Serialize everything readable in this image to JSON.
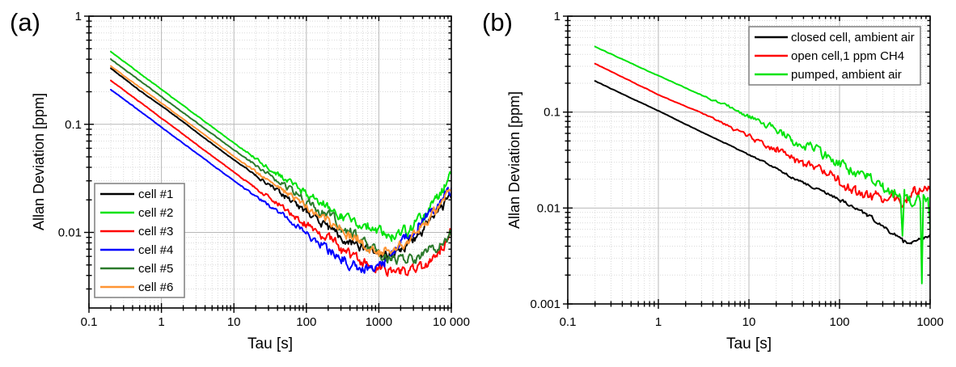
{
  "figure": {
    "background": "#ffffff",
    "description": "Two-panel log-log Allan deviation figure"
  },
  "chart_data": [
    {
      "type": "line",
      "panel_label": "(a)",
      "xlabel": "Tau [s]",
      "ylabel": "Allan Deviation [ppm]",
      "xscale": "log",
      "yscale": "log",
      "xlim": [
        0.1,
        10000
      ],
      "ylim": [
        0.002,
        1
      ],
      "grid": "major solid + minor dotted",
      "legend_position": "lower-left",
      "x_tick_labels": [
        [
          "0.1",
          0.1
        ],
        [
          "1",
          1
        ],
        [
          "10",
          10
        ],
        [
          "100",
          100
        ],
        [
          "1000",
          1000
        ],
        [
          "10 000",
          10000
        ]
      ],
      "y_tick_labels": [
        [
          "1",
          1
        ],
        [
          "0.1",
          0.1
        ],
        [
          "0.01",
          0.01
        ]
      ],
      "series": [
        {
          "name": "cell #1",
          "color": "#000000",
          "noise": {
            "max": 0.036,
            "r0": 1.0,
            "r1": 2.4
          },
          "anchors": [
            [
              0.2,
              0.33
            ],
            [
              0.5,
              0.205
            ],
            [
              1,
              0.148
            ],
            [
              2,
              0.105
            ],
            [
              5,
              0.066
            ],
            [
              10,
              0.047
            ],
            [
              20,
              0.034
            ],
            [
              50,
              0.0215
            ],
            [
              100,
              0.0155
            ],
            [
              200,
              0.0112
            ],
            [
              400,
              0.0082
            ],
            [
              700,
              0.0068
            ],
            [
              1200,
              0.0061
            ],
            [
              2000,
              0.0068
            ],
            [
              3000,
              0.0085
            ],
            [
              5000,
              0.0125
            ],
            [
              7000,
              0.016
            ],
            [
              10000,
              0.022
            ]
          ]
        },
        {
          "name": "cell #2",
          "color": "#00e30b",
          "noise": {
            "max": 0.042,
            "r0": 1.0,
            "r1": 2.4
          },
          "anchors": [
            [
              0.2,
              0.47
            ],
            [
              1,
              0.21
            ],
            [
              10,
              0.067
            ],
            [
              100,
              0.0225
            ],
            [
              300,
              0.0145
            ],
            [
              700,
              0.011
            ],
            [
              1500,
              0.0096
            ],
            [
              2500,
              0.0105
            ],
            [
              4000,
              0.0135
            ],
            [
              6000,
              0.019
            ],
            [
              8000,
              0.026
            ],
            [
              10000,
              0.034
            ]
          ]
        },
        {
          "name": "cell #3",
          "color": "#ff0000",
          "noise": {
            "max": 0.042,
            "r0": 1.0,
            "r1": 2.4
          },
          "anchors": [
            [
              0.2,
              0.255
            ],
            [
              1,
              0.114
            ],
            [
              10,
              0.036
            ],
            [
              100,
              0.012
            ],
            [
              300,
              0.007
            ],
            [
              600,
              0.0052
            ],
            [
              1000,
              0.0046
            ],
            [
              2000,
              0.0043
            ],
            [
              3000,
              0.0044
            ],
            [
              5000,
              0.0052
            ],
            [
              7000,
              0.0068
            ],
            [
              10000,
              0.0105
            ]
          ]
        },
        {
          "name": "cell #4",
          "color": "#0000ff",
          "noise": {
            "max": 0.04,
            "r0": 1.0,
            "r1": 2.4
          },
          "anchors": [
            [
              0.2,
              0.21
            ],
            [
              1,
              0.094
            ],
            [
              10,
              0.03
            ],
            [
              100,
              0.01
            ],
            [
              250,
              0.0062
            ],
            [
              500,
              0.0047
            ],
            [
              800,
              0.0045
            ],
            [
              1200,
              0.0055
            ],
            [
              2000,
              0.0078
            ],
            [
              3500,
              0.0115
            ],
            [
              6000,
              0.017
            ],
            [
              8000,
              0.021
            ],
            [
              10000,
              0.0255
            ]
          ]
        },
        {
          "name": "cell #5",
          "color": "#2b7a2b",
          "noise": {
            "max": 0.04,
            "r0": 1.0,
            "r1": 2.4
          },
          "anchors": [
            [
              0.2,
              0.4
            ],
            [
              1,
              0.18
            ],
            [
              10,
              0.058
            ],
            [
              100,
              0.0195
            ],
            [
              300,
              0.0115
            ],
            [
              700,
              0.0073
            ],
            [
              1500,
              0.0057
            ],
            [
              2500,
              0.0056
            ],
            [
              4000,
              0.0061
            ],
            [
              6000,
              0.0072
            ],
            [
              8000,
              0.0085
            ],
            [
              10000,
              0.0102
            ]
          ]
        },
        {
          "name": "cell #6",
          "color": "#ff9433",
          "noise": {
            "max": 0.04,
            "r0": 1.0,
            "r1": 2.4
          },
          "anchors": [
            [
              0.2,
              0.345
            ],
            [
              1,
              0.157
            ],
            [
              10,
              0.0505
            ],
            [
              100,
              0.0172
            ],
            [
              250,
              0.0115
            ],
            [
              500,
              0.0085
            ],
            [
              1000,
              0.0066
            ],
            [
              1600,
              0.007
            ],
            [
              2500,
              0.0085
            ],
            [
              4000,
              0.0115
            ],
            [
              6000,
              0.0155
            ],
            [
              8000,
              0.0195
            ],
            [
              10000,
              0.024
            ]
          ]
        }
      ]
    },
    {
      "type": "line",
      "panel_label": "(b)",
      "xlabel": "Tau [s]",
      "ylabel": "Allan Deviation [ppm]",
      "xscale": "log",
      "yscale": "log",
      "xlim": [
        0.1,
        1000
      ],
      "ylim": [
        0.001,
        1
      ],
      "grid": "major solid + minor dotted",
      "legend_position": "upper-right",
      "x_tick_labels": [
        [
          "0.1",
          0.1
        ],
        [
          "1",
          1
        ],
        [
          "10",
          10
        ],
        [
          "100",
          100
        ],
        [
          "1000",
          1000
        ]
      ],
      "y_tick_labels": [
        [
          "1",
          1
        ],
        [
          "0.1",
          0.1
        ],
        [
          "0.01",
          0.01
        ],
        [
          "0.001",
          0.001
        ]
      ],
      "series": [
        {
          "name": "closed cell, ambient air",
          "color": "#000000",
          "noise": {
            "max": 0.016,
            "r0": 0.6,
            "r1": 2.2
          },
          "anchors": [
            [
              0.2,
              0.21
            ],
            [
              1,
              0.103
            ],
            [
              3,
              0.062
            ],
            [
              10,
              0.036
            ],
            [
              30,
              0.021
            ],
            [
              100,
              0.0122
            ],
            [
              200,
              0.0085
            ],
            [
              350,
              0.006
            ],
            [
              500,
              0.0046
            ],
            [
              620,
              0.0043
            ],
            [
              750,
              0.0049
            ],
            [
              850,
              0.0048
            ],
            [
              1000,
              0.0053
            ]
          ]
        },
        {
          "name": "open cell,1 ppm CH4",
          "color": "#ff0000",
          "noise": {
            "max": 0.05,
            "r0": 0.4,
            "r1": 1.9
          },
          "anchors": [
            [
              0.2,
              0.32
            ],
            [
              1,
              0.152
            ],
            [
              2,
              0.115
            ],
            [
              3,
              0.098
            ],
            [
              5,
              0.076
            ],
            [
              10,
              0.056
            ],
            [
              20,
              0.04
            ],
            [
              40,
              0.029
            ],
            [
              70,
              0.0225
            ],
            [
              100,
              0.019
            ],
            [
              150,
              0.0152
            ],
            [
              250,
              0.0128
            ],
            [
              400,
              0.0125
            ],
            [
              550,
              0.012
            ],
            [
              650,
              0.0148
            ],
            [
              750,
              0.0138
            ],
            [
              850,
              0.0165
            ],
            [
              1000,
              0.0155
            ]
          ]
        },
        {
          "name": "pumped, ambient air",
          "color": "#00e30b",
          "noise": {
            "max": 0.052,
            "r0": 0.4,
            "r1": 1.9
          },
          "anchors": [
            [
              0.2,
              0.48
            ],
            [
              1,
              0.24
            ],
            [
              3,
              0.15
            ],
            [
              10,
              0.091
            ],
            [
              30,
              0.053
            ],
            [
              100,
              0.0295
            ],
            [
              200,
              0.0205
            ],
            [
              300,
              0.016
            ],
            [
              400,
              0.014
            ],
            [
              470,
              0.013
            ],
            [
              495,
              0.0042
            ],
            [
              520,
              0.013
            ],
            [
              600,
              0.012
            ],
            [
              700,
              0.0125
            ],
            [
              780,
              0.012
            ],
            [
              810,
              0.0019
            ],
            [
              840,
              0.0125
            ],
            [
              900,
              0.013
            ],
            [
              950,
              0.0115
            ],
            [
              1000,
              0.0065
            ]
          ]
        }
      ]
    }
  ]
}
